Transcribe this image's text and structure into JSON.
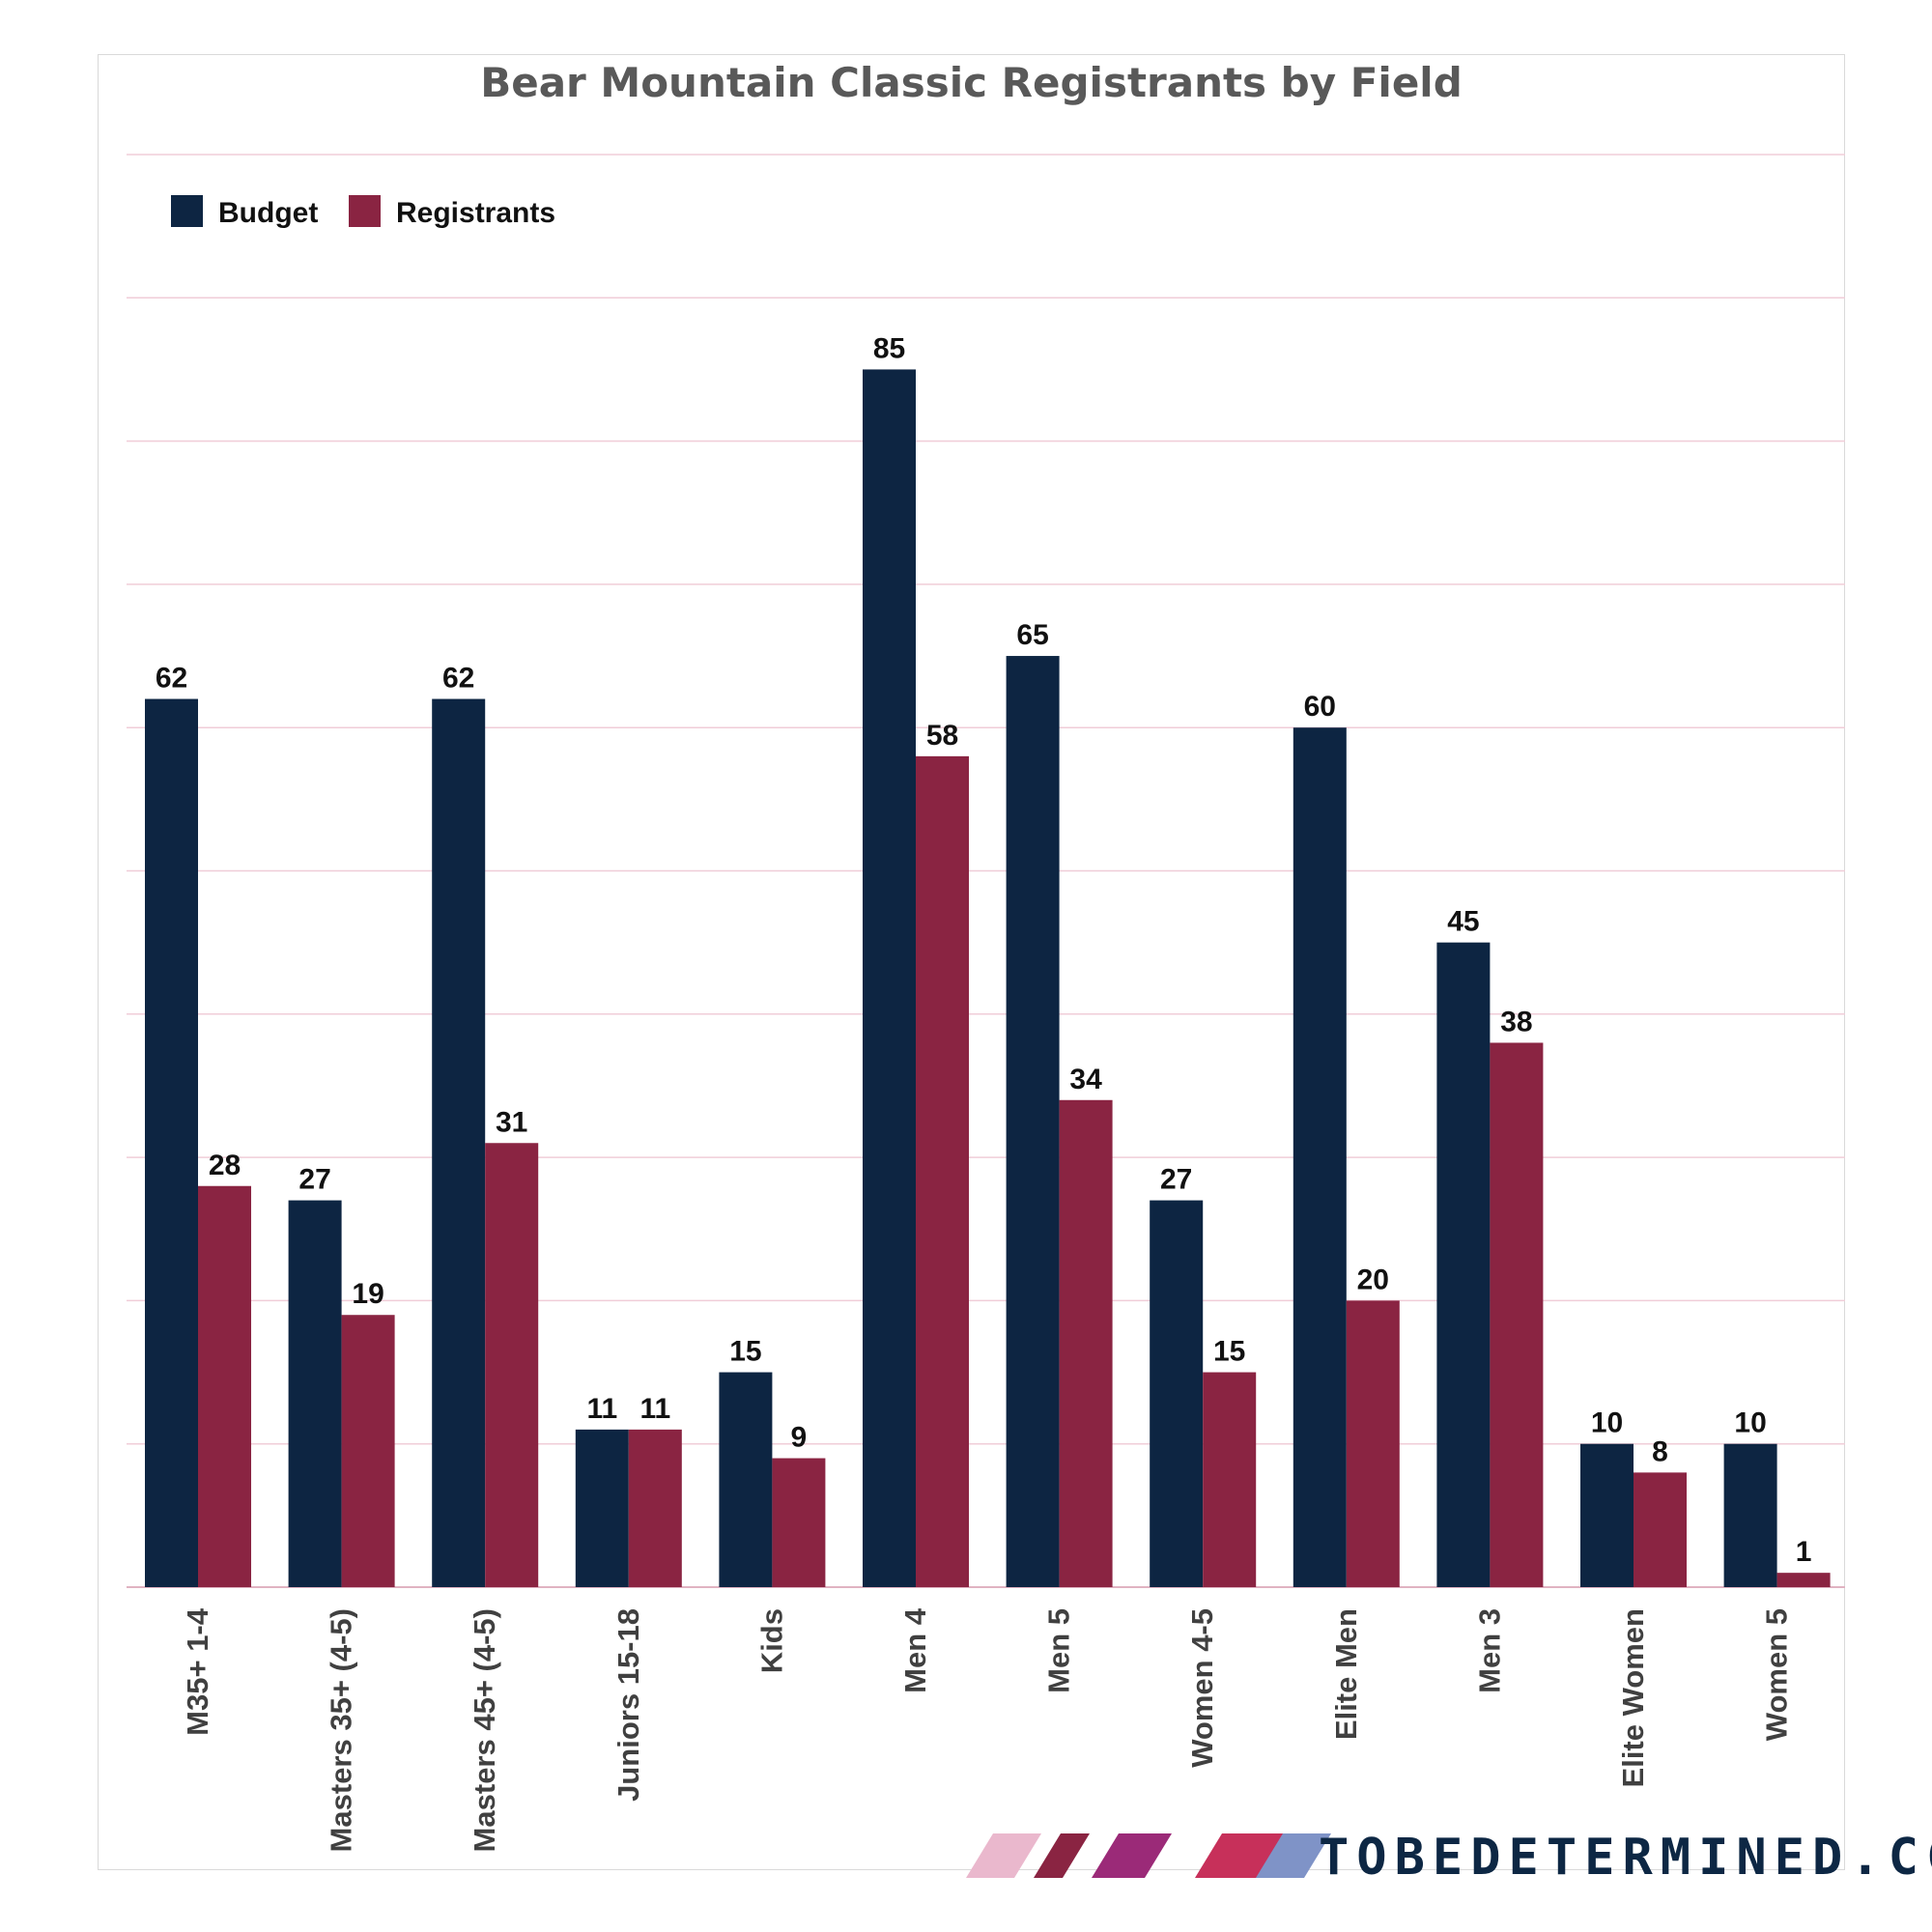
{
  "chart_data": {
    "type": "bar",
    "title": "Bear Mountain Classic Registrants by Field",
    "xlabel": "",
    "ylabel": "",
    "ylim": [
      0,
      100
    ],
    "grid": true,
    "legend_position": "top-left",
    "categories": [
      "M35+ 1-4",
      "Masters 35+ (4-5)",
      "Masters 45+ (4-5)",
      "Juniors 15-18",
      "Kids",
      "Men 4",
      "Men 5",
      "Women 4-5",
      "Elite Men",
      "Men 3",
      "Elite Women",
      "Women 5"
    ],
    "series": [
      {
        "name": "Budget",
        "color": "#0d2542",
        "values": [
          62,
          27,
          62,
          11,
          15,
          85,
          65,
          27,
          60,
          45,
          10,
          10
        ]
      },
      {
        "name": "Registrants",
        "color": "#8a2442",
        "values": [
          28,
          19,
          31,
          11,
          9,
          58,
          34,
          15,
          20,
          38,
          8,
          1
        ]
      }
    ]
  },
  "brand": {
    "text": "TOBEDETERMINED.CC",
    "colors": [
      "#eab8cd",
      "#8a2442",
      "#9b2a78",
      "#c7305a",
      "#7f93c7"
    ]
  }
}
